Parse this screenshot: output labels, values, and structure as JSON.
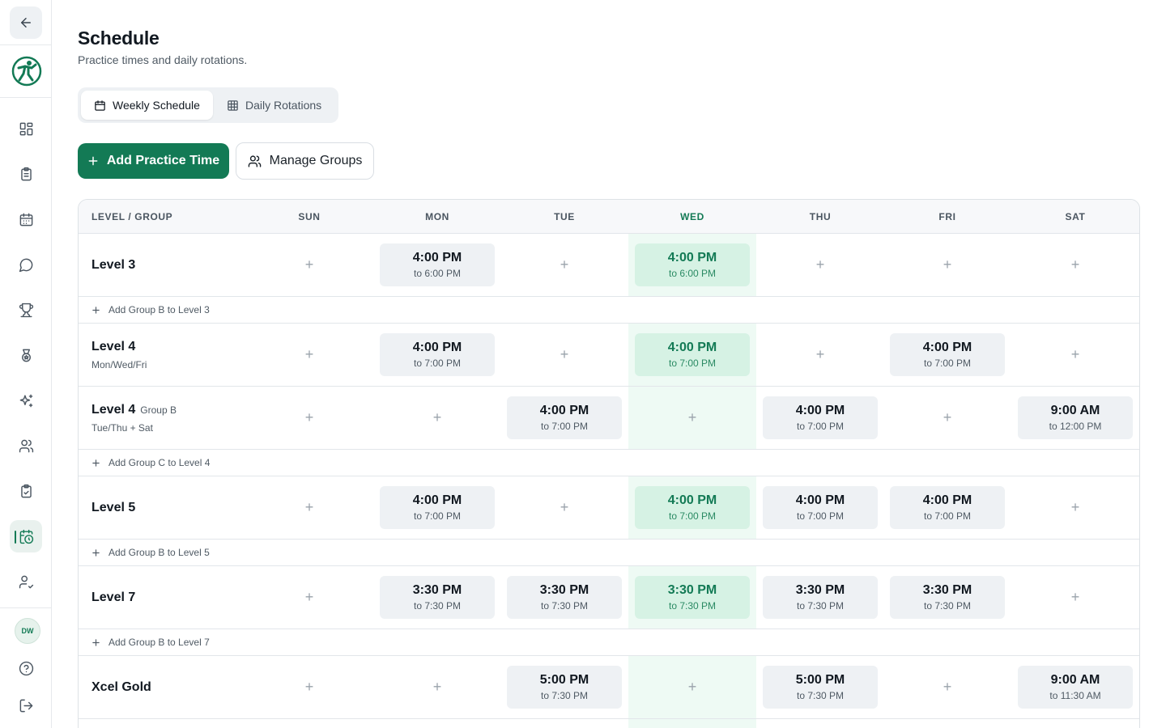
{
  "sidebar": {
    "items": [
      {
        "icon": "dashboard-icon"
      },
      {
        "icon": "clipboard-icon"
      },
      {
        "icon": "calendar-icon"
      },
      {
        "icon": "chat-icon"
      },
      {
        "icon": "trophy-icon"
      },
      {
        "icon": "medal-icon"
      },
      {
        "icon": "sparkles-icon"
      },
      {
        "icon": "users-icon"
      },
      {
        "icon": "clipboard-check-icon"
      },
      {
        "icon": "calendar-clock-icon",
        "active": true
      },
      {
        "icon": "user-check-icon"
      }
    ],
    "avatar_initials": "DW"
  },
  "header": {
    "title": "Schedule",
    "subtitle": "Practice times and daily rotations."
  },
  "tabs": [
    {
      "label": "Weekly Schedule",
      "icon": "calendar-icon",
      "active": true
    },
    {
      "label": "Daily Rotations",
      "icon": "grid-icon",
      "active": false
    }
  ],
  "actions": {
    "add_practice_label": "Add Practice Time",
    "manage_groups_label": "Manage Groups"
  },
  "table": {
    "columns": [
      "LEVEL / GROUP",
      "SUN",
      "MON",
      "TUE",
      "WED",
      "THU",
      "FRI",
      "SAT"
    ],
    "highlight_day": "WED",
    "rows": [
      {
        "type": "level",
        "name": "Level 3",
        "group": "",
        "days": "",
        "slots": [
          null,
          {
            "start": "4:00 PM",
            "end": "to 6:00 PM"
          },
          null,
          {
            "start": "4:00 PM",
            "end": "to 6:00 PM"
          },
          null,
          null,
          null
        ]
      },
      {
        "type": "add",
        "label": "Add Group B to Level 3"
      },
      {
        "type": "level",
        "name": "Level 4",
        "group": "",
        "days": "Mon/Wed/Fri",
        "slots": [
          null,
          {
            "start": "4:00 PM",
            "end": "to 7:00 PM"
          },
          null,
          {
            "start": "4:00 PM",
            "end": "to 7:00 PM"
          },
          null,
          {
            "start": "4:00 PM",
            "end": "to 7:00 PM"
          },
          null
        ]
      },
      {
        "type": "level",
        "name": "Level 4",
        "group": "Group B",
        "days": "Tue/Thu + Sat",
        "slots": [
          null,
          null,
          {
            "start": "4:00 PM",
            "end": "to 7:00 PM"
          },
          null,
          {
            "start": "4:00 PM",
            "end": "to 7:00 PM"
          },
          null,
          {
            "start": "9:00 AM",
            "end": "to 12:00 PM"
          }
        ]
      },
      {
        "type": "add",
        "label": "Add Group C to Level 4"
      },
      {
        "type": "level",
        "name": "Level 5",
        "group": "",
        "days": "",
        "slots": [
          null,
          {
            "start": "4:00 PM",
            "end": "to 7:00 PM"
          },
          null,
          {
            "start": "4:00 PM",
            "end": "to 7:00 PM"
          },
          {
            "start": "4:00 PM",
            "end": "to 7:00 PM"
          },
          {
            "start": "4:00 PM",
            "end": "to 7:00 PM"
          },
          null
        ]
      },
      {
        "type": "add",
        "label": "Add Group B to Level 5"
      },
      {
        "type": "level",
        "name": "Level 7",
        "group": "",
        "days": "",
        "slots": [
          null,
          {
            "start": "3:30 PM",
            "end": "to 7:30 PM"
          },
          {
            "start": "3:30 PM",
            "end": "to 7:30 PM"
          },
          {
            "start": "3:30 PM",
            "end": "to 7:30 PM"
          },
          {
            "start": "3:30 PM",
            "end": "to 7:30 PM"
          },
          {
            "start": "3:30 PM",
            "end": "to 7:30 PM"
          },
          null
        ]
      },
      {
        "type": "add",
        "label": "Add Group B to Level 7"
      },
      {
        "type": "level",
        "name": "Xcel Gold",
        "group": "",
        "days": "",
        "slots": [
          null,
          null,
          {
            "start": "5:00 PM",
            "end": "to 7:30 PM"
          },
          null,
          {
            "start": "5:00 PM",
            "end": "to 7:30 PM"
          },
          null,
          {
            "start": "9:00 AM",
            "end": "to 11:30 AM"
          }
        ]
      }
    ]
  },
  "colors": {
    "accent": "#137a55",
    "wed_column_bg": "#eefaf4",
    "wed_slot_bg": "#d6f2e4",
    "slot_bg": "#eef1f4"
  }
}
